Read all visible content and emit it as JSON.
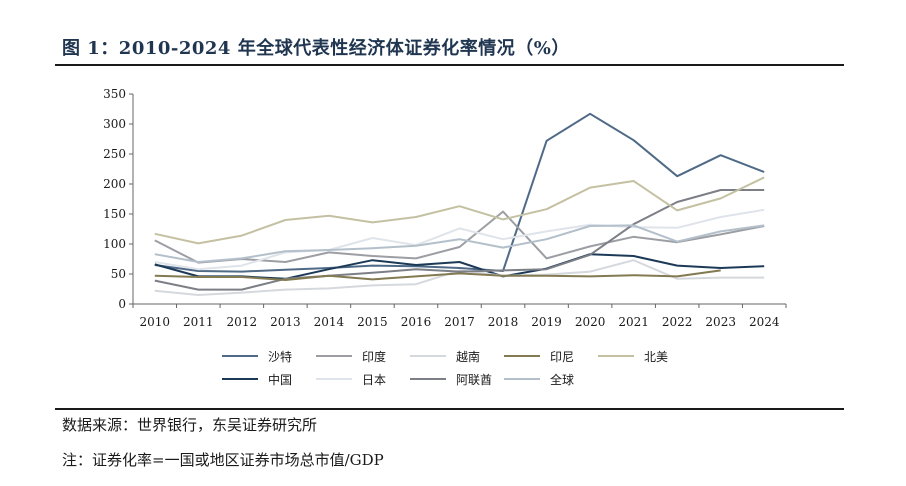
{
  "figure": {
    "title": "图 1：2010-2024 年全球代表性经济体证券化率情况（%）",
    "source": "数据来源：世界银行，东吴证券研究所",
    "note": "注：证券化率=一国或地区证券市场总市值/GDP"
  },
  "chart_data": {
    "type": "line",
    "title": "",
    "xlabel": "",
    "ylabel": "",
    "ylim": [
      0,
      350
    ],
    "yticks": [
      0,
      50,
      100,
      150,
      200,
      250,
      300,
      350
    ],
    "grid": false,
    "legend_position": "bottom",
    "x": [
      "2010",
      "2011",
      "2012",
      "2013",
      "2014",
      "2015",
      "2016",
      "2017",
      "2018",
      "2019",
      "2020",
      "2021",
      "2022",
      "2023",
      "2024"
    ],
    "series": [
      {
        "name": "沙特",
        "color": "#4f6a87",
        "values": [
          65,
          55,
          54,
          57,
          60,
          64,
          63,
          60,
          55,
          272,
          317,
          273,
          213,
          248,
          220
        ]
      },
      {
        "name": "中国",
        "color": "#1c3a57",
        "values": [
          66,
          46,
          46,
          42,
          58,
          73,
          65,
          70,
          46,
          59,
          83,
          80,
          64,
          60,
          63
        ]
      },
      {
        "name": "印度",
        "color": "#9c9ea3",
        "values": [
          106,
          69,
          75,
          70,
          86,
          80,
          76,
          95,
          154,
          76,
          96,
          112,
          103,
          116,
          130
        ]
      },
      {
        "name": "日本",
        "color": "#dfe4ea",
        "values": [
          70,
          58,
          64,
          86,
          90,
          110,
          98,
          126,
          108,
          121,
          132,
          128,
          127,
          145,
          157
        ]
      },
      {
        "name": "越南",
        "color": "#d5d8dd",
        "values": [
          22,
          15,
          19,
          24,
          26,
          31,
          33,
          56,
          47,
          49,
          54,
          73,
          42,
          44,
          44
        ]
      },
      {
        "name": "阿联酋",
        "color": "#7c7f86",
        "values": [
          39,
          24,
          24,
          42,
          47,
          52,
          58,
          54,
          56,
          58,
          82,
          133,
          170,
          190,
          190
        ]
      },
      {
        "name": "印尼",
        "color": "#837a52",
        "values": [
          47,
          45,
          45,
          40,
          47,
          41,
          46,
          51,
          47,
          47,
          46,
          48,
          46,
          56,
          null
        ]
      },
      {
        "name": "全球",
        "color": "#b3bfca",
        "values": [
          83,
          70,
          76,
          88,
          90,
          93,
          97,
          108,
          94,
          108,
          130,
          131,
          104,
          121,
          131
        ]
      },
      {
        "name": "北美",
        "color": "#c4c1a2",
        "values": [
          117,
          101,
          114,
          140,
          147,
          136,
          145,
          163,
          141,
          158,
          194,
          205,
          156,
          176,
          211
        ]
      }
    ]
  },
  "legend": {
    "row1": [
      {
        "name": "沙特",
        "color": "#4f6a87"
      },
      {
        "name": "印度",
        "color": "#9c9ea3"
      },
      {
        "name": "越南",
        "color": "#d5d8dd"
      },
      {
        "name": "印尼",
        "color": "#837a52"
      },
      {
        "name": "北美",
        "color": "#c4c1a2"
      }
    ],
    "row2": [
      {
        "name": "中国",
        "color": "#1c3a57"
      },
      {
        "name": "日本",
        "color": "#dfe4ea"
      },
      {
        "name": "阿联酋",
        "color": "#7c7f86"
      },
      {
        "name": "全球",
        "color": "#b3bfca"
      }
    ]
  }
}
